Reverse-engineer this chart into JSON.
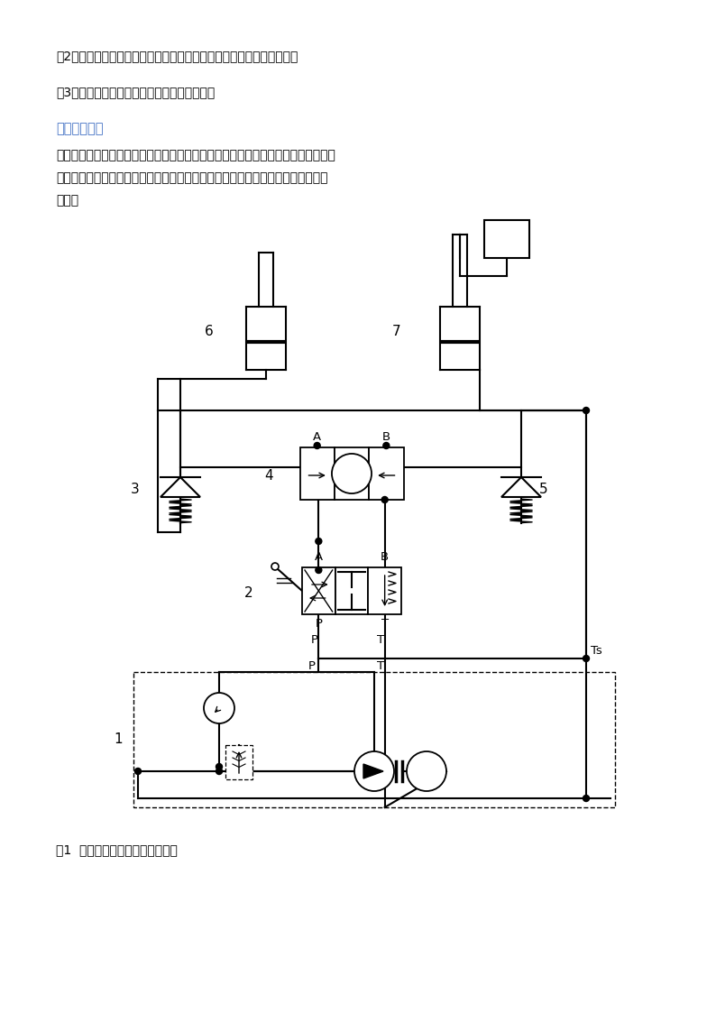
{
  "page_width": 7.94,
  "page_height": 11.23,
  "bg_color": "#ffffff",
  "text_color": "#000000",
  "blue_color": "#4472c4",
  "orange_color": "#c07000",
  "line2": "（2）准确进行元件的连接、回路的组建，组装两缸起重设备液压系统；",
  "line3": "（3）对两缸起重设备液压系统运行进行分析。",
  "section_title": "三、实验分析",
  "body_line1": "在两缸起重设备液压系统中，在运动中两个工作液压缸必须保证严格相同的位移量，",
  "body_line2": "即组建一个同步回路。可以利用一个分流阀和两个单向鄀来设计液压回路，如下图",
  "body_line3": "所示：",
  "fig_caption": "图1  两缸起重设备液压系统原理图"
}
